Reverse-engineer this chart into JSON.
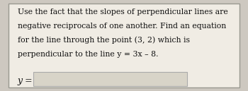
{
  "background_color": "#cdc8c0",
  "box_color": "#f0ece4",
  "border_color": "#999990",
  "input_box_color": "#d8d4c8",
  "input_box_border": "#aaaaaa",
  "title_lines": [
    "Use the fact that the slopes of perpendicular lines are",
    "negative reciprocals of one another. Find an equation",
    "for the line through the point (3, 2) which is",
    "perpendicular to the line y = 3x – 8."
  ],
  "label_text": "y =",
  "text_color": "#111111",
  "font_size": 7.8,
  "label_font_size": 9.0,
  "fig_width": 3.5,
  "fig_height": 1.29,
  "dpi": 100
}
